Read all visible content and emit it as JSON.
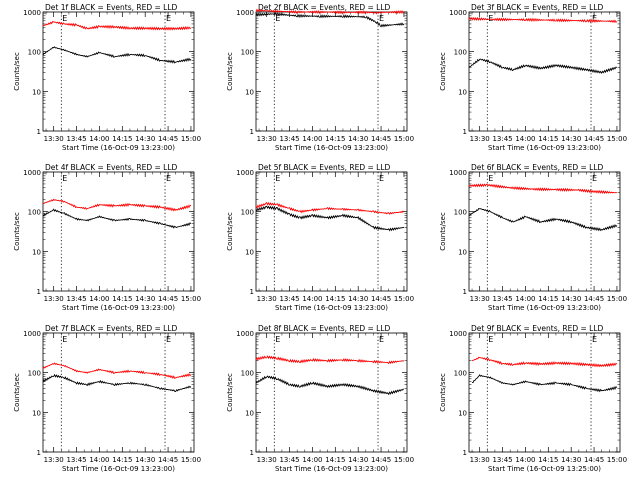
{
  "chart_data": [
    {
      "type": "line",
      "title": "Det 1f BLACK = Events, RED = LLD",
      "xlabel": "Start Time (16-Oct-09 13:23:00)",
      "ylabel": "Counts/sec",
      "scale": "log",
      "ylim": [
        1,
        1000
      ],
      "x_ticks": [
        "13:30",
        "13:45",
        "14:00",
        "14:15",
        "14:30",
        "14:45",
        "15:00"
      ],
      "y_ticks": [
        "1",
        "10",
        "100",
        "1000"
      ],
      "markers": [
        {
          "time": "13:35",
          "label": "E"
        },
        {
          "time": "14:43",
          "label": "E"
        }
      ],
      "series": [
        {
          "color": "#ff0000",
          "x": [
            "13:23",
            "13:30",
            "13:37",
            "13:45",
            "13:52",
            "14:00",
            "14:10",
            "14:20",
            "14:30",
            "14:40",
            "14:50",
            "15:00"
          ],
          "values": [
            450,
            560,
            500,
            470,
            380,
            430,
            420,
            390,
            390,
            380,
            380,
            400
          ]
        },
        {
          "color": "#000000",
          "x": [
            "13:23",
            "13:30",
            "13:37",
            "13:45",
            "13:52",
            "14:00",
            "14:10",
            "14:20",
            "14:30",
            "14:40",
            "14:50",
            "15:00"
          ],
          "values": [
            85,
            130,
            110,
            85,
            75,
            95,
            75,
            85,
            80,
            60,
            55,
            65
          ]
        }
      ]
    },
    {
      "type": "line",
      "title": "Det 2f BLACK = Events, RED = LLD",
      "xlabel": "Start Time (16-Oct-09 13:23:00)",
      "ylabel": "Counts/sec",
      "scale": "log",
      "ylim": [
        1,
        1000
      ],
      "x_ticks": [
        "13:30",
        "13:45",
        "14:00",
        "14:15",
        "14:30",
        "14:45",
        "15:00"
      ],
      "y_ticks": [
        "1",
        "10",
        "100",
        "1000"
      ],
      "markers": [
        {
          "time": "13:35",
          "label": "E"
        },
        {
          "time": "14:43",
          "label": "E"
        }
      ],
      "series": [
        {
          "color": "#ff0000",
          "x": [
            "13:23",
            "13:35",
            "13:50",
            "14:05",
            "14:20",
            "14:35",
            "14:42",
            "14:45",
            "15:00"
          ],
          "values": [
            1100,
            1050,
            1000,
            1000,
            980,
            990,
            950,
            980,
            1000
          ]
        },
        {
          "color": "#000000",
          "x": [
            "13:23",
            "13:35",
            "13:50",
            "14:05",
            "14:20",
            "14:35",
            "14:42",
            "14:45",
            "15:00"
          ],
          "values": [
            850,
            900,
            800,
            780,
            780,
            750,
            550,
            450,
            500
          ]
        }
      ]
    },
    {
      "type": "line",
      "title": "Det 3f BLACK = Events, RED = LLD",
      "xlabel": "Start Time (16-Oct-09 13:23:00)",
      "ylabel": "Counts/sec",
      "scale": "log",
      "ylim": [
        1,
        1000
      ],
      "x_ticks": [
        "13:30",
        "13:45",
        "14:00",
        "14:15",
        "14:30",
        "14:45",
        "15:00"
      ],
      "y_ticks": [
        "1",
        "10",
        "100",
        "1000"
      ],
      "markers": [
        {
          "time": "13:35",
          "label": "E"
        },
        {
          "time": "14:43",
          "label": "E"
        }
      ],
      "series": [
        {
          "color": "#ff0000",
          "x": [
            "13:23",
            "13:40",
            "14:00",
            "14:20",
            "14:40",
            "15:00"
          ],
          "values": [
            680,
            650,
            640,
            620,
            600,
            580
          ]
        },
        {
          "color": "#000000",
          "x": [
            "13:23",
            "13:30",
            "13:37",
            "13:45",
            "13:52",
            "14:00",
            "14:10",
            "14:20",
            "14:30",
            "14:40",
            "14:50",
            "15:00"
          ],
          "values": [
            40,
            65,
            55,
            40,
            35,
            45,
            38,
            45,
            40,
            35,
            30,
            40
          ]
        }
      ]
    },
    {
      "type": "line",
      "title": "Det 4f BLACK = Events, RED = LLD",
      "xlabel": "Start Time (16-Oct-09 13:23:00)",
      "ylabel": "Counts/sec",
      "scale": "log",
      "ylim": [
        1,
        1000
      ],
      "x_ticks": [
        "13:30",
        "13:45",
        "14:00",
        "14:15",
        "14:30",
        "14:45",
        "15:00"
      ],
      "y_ticks": [
        "1",
        "10",
        "100",
        "1000"
      ],
      "markers": [
        {
          "time": "13:35",
          "label": "E"
        },
        {
          "time": "14:43",
          "label": "E"
        }
      ],
      "series": [
        {
          "color": "#ff0000",
          "x": [
            "13:23",
            "13:30",
            "13:37",
            "13:45",
            "13:52",
            "14:00",
            "14:10",
            "14:20",
            "14:30",
            "14:40",
            "14:50",
            "15:00"
          ],
          "values": [
            160,
            200,
            180,
            130,
            120,
            150,
            140,
            150,
            140,
            130,
            110,
            140
          ]
        },
        {
          "color": "#000000",
          "x": [
            "13:23",
            "13:30",
            "13:37",
            "13:45",
            "13:52",
            "14:00",
            "14:10",
            "14:20",
            "14:30",
            "14:40",
            "14:50",
            "15:00"
          ],
          "values": [
            80,
            110,
            90,
            65,
            60,
            75,
            60,
            65,
            60,
            50,
            40,
            50
          ]
        }
      ]
    },
    {
      "type": "line",
      "title": "Det 5f BLACK = Events, RED = LLD",
      "xlabel": "Start Time (16-Oct-09 13:23:00)",
      "ylabel": "Counts/sec",
      "scale": "log",
      "ylim": [
        1,
        1000
      ],
      "x_ticks": [
        "13:30",
        "13:45",
        "14:00",
        "14:15",
        "14:30",
        "14:45",
        "15:00"
      ],
      "y_ticks": [
        "1",
        "10",
        "100",
        "1000"
      ],
      "markers": [
        {
          "time": "13:35",
          "label": "E"
        },
        {
          "time": "14:43",
          "label": "E"
        }
      ],
      "series": [
        {
          "color": "#ff0000",
          "x": [
            "13:23",
            "13:30",
            "13:37",
            "13:45",
            "13:52",
            "14:00",
            "14:10",
            "14:20",
            "14:30",
            "14:40",
            "14:50",
            "15:00"
          ],
          "values": [
            130,
            160,
            150,
            120,
            100,
            110,
            120,
            115,
            110,
            100,
            90,
            100
          ]
        },
        {
          "color": "#000000",
          "x": [
            "13:23",
            "13:30",
            "13:37",
            "13:45",
            "13:52",
            "14:00",
            "14:10",
            "14:20",
            "14:30",
            "14:40",
            "14:50",
            "15:00"
          ],
          "values": [
            110,
            130,
            120,
            85,
            70,
            80,
            70,
            80,
            70,
            40,
            35,
            40
          ]
        }
      ]
    },
    {
      "type": "line",
      "title": "Det 6f BLACK = Events, RED = LLD",
      "xlabel": "Start Time (16-Oct-09 13:23:00)",
      "ylabel": "Counts/sec",
      "scale": "log",
      "ylim": [
        1,
        1000
      ],
      "x_ticks": [
        "13:30",
        "13:45",
        "14:00",
        "14:15",
        "14:30",
        "14:45",
        "15:00"
      ],
      "y_ticks": [
        "1",
        "10",
        "100",
        "1000"
      ],
      "markers": [
        {
          "time": "13:35",
          "label": "E"
        },
        {
          "time": "14:43",
          "label": "E"
        }
      ],
      "series": [
        {
          "color": "#ff0000",
          "x": [
            "13:23",
            "13:35",
            "13:50",
            "14:05",
            "14:20",
            "14:35",
            "14:45",
            "15:00"
          ],
          "values": [
            450,
            470,
            400,
            370,
            360,
            350,
            320,
            300
          ]
        },
        {
          "color": "#000000",
          "x": [
            "13:23",
            "13:30",
            "13:37",
            "13:45",
            "13:52",
            "14:00",
            "14:10",
            "14:20",
            "14:30",
            "14:40",
            "14:50",
            "15:00"
          ],
          "values": [
            80,
            120,
            100,
            70,
            55,
            75,
            55,
            65,
            55,
            40,
            35,
            45
          ]
        }
      ]
    },
    {
      "type": "line",
      "title": "Det 7f BLACK = Events, RED = LLD",
      "xlabel": "Start Time (16-Oct-09 13:23:00)",
      "ylabel": "Counts/sec",
      "scale": "log",
      "ylim": [
        1,
        1000
      ],
      "x_ticks": [
        "13:30",
        "13:45",
        "14:00",
        "14:15",
        "14:30",
        "14:45",
        "15:00"
      ],
      "y_ticks": [
        "1",
        "10",
        "100",
        "1000"
      ],
      "markers": [
        {
          "time": "13:35",
          "label": "E"
        },
        {
          "time": "14:43",
          "label": "E"
        }
      ],
      "series": [
        {
          "color": "#ff0000",
          "x": [
            "13:23",
            "13:30",
            "13:37",
            "13:45",
            "13:52",
            "14:00",
            "14:10",
            "14:20",
            "14:30",
            "14:40",
            "14:50",
            "15:00"
          ],
          "values": [
            130,
            170,
            150,
            110,
            100,
            120,
            100,
            110,
            100,
            90,
            75,
            90
          ]
        },
        {
          "color": "#000000",
          "x": [
            "13:23",
            "13:30",
            "13:37",
            "13:45",
            "13:52",
            "14:00",
            "14:10",
            "14:20",
            "14:30",
            "14:40",
            "14:50",
            "15:00"
          ],
          "values": [
            60,
            85,
            75,
            55,
            50,
            60,
            50,
            55,
            50,
            40,
            35,
            45
          ]
        }
      ]
    },
    {
      "type": "line",
      "title": "Det 8f BLACK = Events, RED = LLD",
      "xlabel": "Start Time (16-Oct-09 13:23:00)",
      "ylabel": "Counts/sec",
      "scale": "log",
      "ylim": [
        1,
        1000
      ],
      "x_ticks": [
        "13:30",
        "13:45",
        "14:00",
        "14:15",
        "14:30",
        "14:45",
        "15:00"
      ],
      "y_ticks": [
        "1",
        "10",
        "100",
        "1000"
      ],
      "markers": [
        {
          "time": "13:35",
          "label": "E"
        },
        {
          "time": "14:43",
          "label": "E"
        }
      ],
      "series": [
        {
          "color": "#ff0000",
          "x": [
            "13:23",
            "13:30",
            "13:37",
            "13:45",
            "13:52",
            "14:00",
            "14:10",
            "14:20",
            "14:30",
            "14:40",
            "14:50",
            "15:00"
          ],
          "values": [
            220,
            250,
            230,
            200,
            190,
            210,
            200,
            210,
            200,
            190,
            180,
            200
          ]
        },
        {
          "color": "#000000",
          "x": [
            "13:23",
            "13:30",
            "13:37",
            "13:45",
            "13:52",
            "14:00",
            "14:10",
            "14:20",
            "14:30",
            "14:40",
            "14:50",
            "15:00"
          ],
          "values": [
            55,
            80,
            70,
            50,
            45,
            55,
            45,
            50,
            45,
            35,
            30,
            38
          ]
        }
      ]
    },
    {
      "type": "line",
      "title": "Det 9f BLACK = Events, RED = LLD",
      "xlabel": "Start Time (16-Oct-09 13:25:00)",
      "ylabel": "Counts/sec",
      "scale": "log",
      "ylim": [
        1,
        1000
      ],
      "x_ticks": [
        "13:30",
        "13:45",
        "14:00",
        "14:15",
        "14:30",
        "14:45",
        "15:00"
      ],
      "y_ticks": [
        "1",
        "10",
        "100",
        "1000"
      ],
      "markers": [
        {
          "time": "13:35",
          "label": "E"
        },
        {
          "time": "14:43",
          "label": "E"
        }
      ],
      "series": [
        {
          "color": "#ff0000",
          "x": [
            "13:25",
            "13:30",
            "13:37",
            "13:45",
            "13:52",
            "14:00",
            "14:10",
            "14:20",
            "14:30",
            "14:40",
            "14:50",
            "15:00"
          ],
          "values": [
            200,
            240,
            210,
            170,
            160,
            175,
            165,
            175,
            170,
            160,
            150,
            165
          ]
        },
        {
          "color": "#000000",
          "x": [
            "13:25",
            "13:30",
            "13:37",
            "13:45",
            "13:52",
            "14:00",
            "14:10",
            "14:20",
            "14:30",
            "14:40",
            "14:50",
            "15:00"
          ],
          "values": [
            55,
            85,
            75,
            55,
            50,
            60,
            50,
            55,
            50,
            40,
            35,
            42
          ]
        }
      ]
    }
  ]
}
